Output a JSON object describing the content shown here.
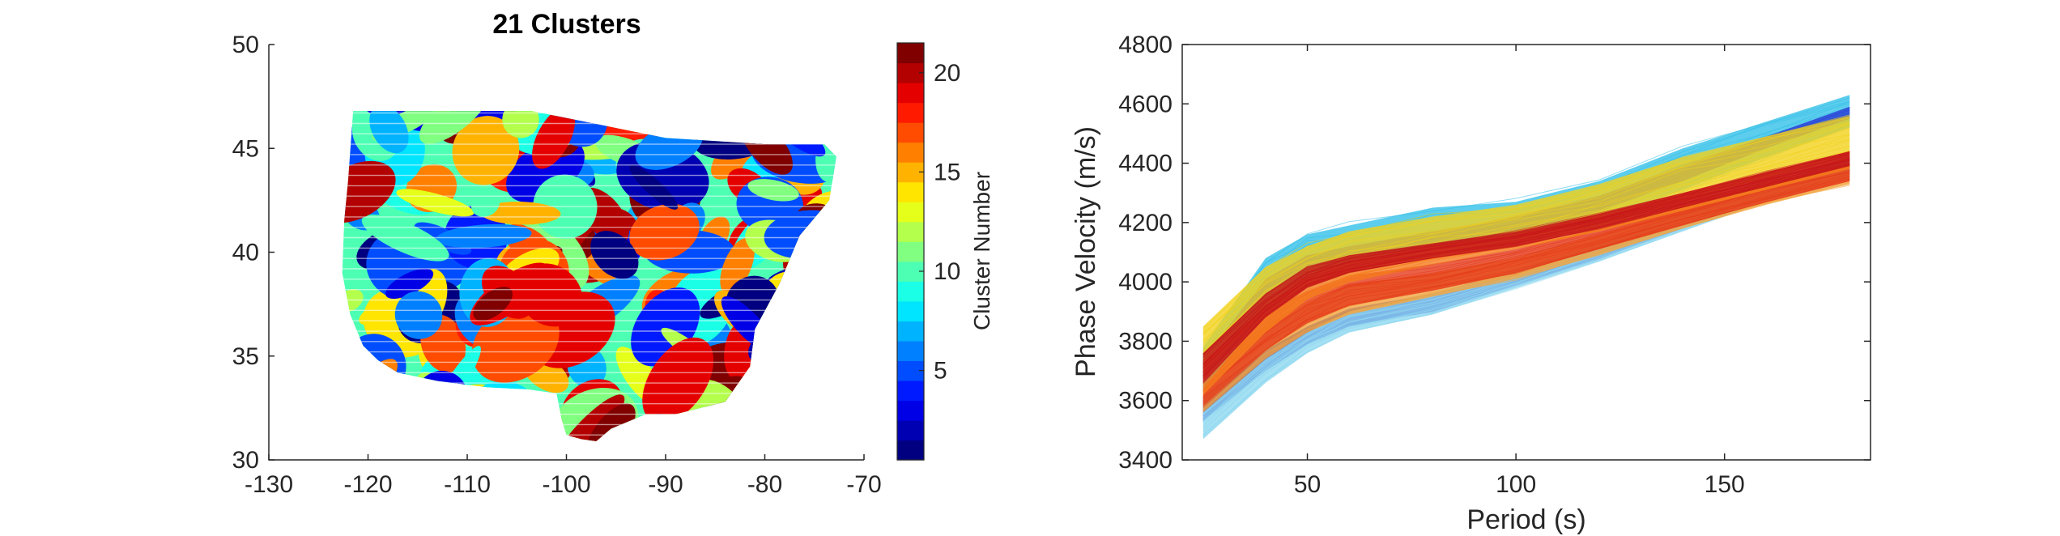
{
  "chart_data": [
    {
      "type": "scatter",
      "title": "21 Clusters",
      "xlabel": "",
      "ylabel": "",
      "xlim": [
        -130,
        -70
      ],
      "ylim": [
        30,
        50
      ],
      "xticks": [
        -130,
        -120,
        -110,
        -100,
        -90,
        -80,
        -70
      ],
      "yticks": [
        30,
        35,
        40,
        45,
        50
      ],
      "xtick_labels": [
        "-130",
        "-120",
        "-110",
        "-100",
        "-90",
        "-80",
        "-70"
      ],
      "ytick_labels": [
        "30",
        "35",
        "40",
        "45",
        "50"
      ],
      "grid": false,
      "colorbar": {
        "label": "Cluster Number",
        "range": [
          1,
          21
        ],
        "ticks": [
          5,
          10,
          15,
          20
        ],
        "tick_labels": [
          "5",
          "10",
          "15",
          "20"
        ],
        "colormap": "jet"
      },
      "domain_outline": [
        [
          -121.5,
          46.8
        ],
        [
          -103.5,
          46.8
        ],
        [
          -90,
          45.5
        ],
        [
          -80,
          45.2
        ],
        [
          -74,
          45.2
        ],
        [
          -72.8,
          44.6
        ],
        [
          -73.5,
          42.5
        ],
        [
          -76.5,
          40.8
        ],
        [
          -78.5,
          38.5
        ],
        [
          -81,
          36.3
        ],
        [
          -81.5,
          34.5
        ],
        [
          -84,
          32.8
        ],
        [
          -89,
          32.2
        ],
        [
          -92,
          32.2
        ],
        [
          -95.5,
          31.5
        ],
        [
          -97,
          30.9
        ],
        [
          -98.5,
          31
        ],
        [
          -100,
          31.2
        ],
        [
          -100.5,
          32
        ],
        [
          -101,
          33.2
        ],
        [
          -104,
          33.4
        ],
        [
          -108,
          33.5
        ],
        [
          -113,
          33.8
        ],
        [
          -117,
          34.2
        ],
        [
          -119,
          34.8
        ],
        [
          -120.5,
          35.5
        ],
        [
          -121.8,
          37
        ],
        [
          -122.6,
          39
        ],
        [
          -122.4,
          41.5
        ],
        [
          -122,
          43.5
        ],
        [
          -121.5,
          46.8
        ]
      ]
    },
    {
      "type": "line",
      "title": "",
      "xlabel": "Period (s)",
      "ylabel": "Phase Velocity (m/s)",
      "xlim": [
        20,
        185
      ],
      "ylim": [
        3400,
        4800
      ],
      "xticks": [
        50,
        100,
        150
      ],
      "yticks": [
        3400,
        3600,
        3800,
        4000,
        4200,
        4400,
        4600,
        4800
      ],
      "xtick_labels": [
        "50",
        "100",
        "150"
      ],
      "ytick_labels": [
        "3400",
        "3600",
        "3800",
        "4000",
        "4200",
        "4400",
        "4600",
        "4800"
      ],
      "grid": false,
      "x": [
        25,
        40,
        50,
        60,
        80,
        100,
        120,
        140,
        160,
        180
      ],
      "curve_bundles": [
        {
          "color": "#1f1fbf",
          "lower": [
            3530,
            3700,
            3790,
            3850,
            3900,
            3990,
            4080,
            4180,
            4280,
            4360
          ],
          "upper": [
            3610,
            3770,
            3850,
            3910,
            3960,
            4040,
            4130,
            4230,
            4330,
            4420
          ]
        },
        {
          "color": "#8fd8f0",
          "lower": [
            3470,
            3660,
            3760,
            3830,
            3890,
            3980,
            4070,
            4170,
            4270,
            4350
          ],
          "upper": [
            3560,
            3740,
            3830,
            3900,
            3960,
            4040,
            4130,
            4230,
            4330,
            4410
          ]
        },
        {
          "color": "#f2a640",
          "lower": [
            3560,
            3740,
            3830,
            3890,
            3950,
            4010,
            4090,
            4180,
            4260,
            4330
          ],
          "upper": [
            3700,
            3850,
            3930,
            3990,
            4030,
            4080,
            4160,
            4250,
            4320,
            4390
          ]
        },
        {
          "color": "#e53a1a",
          "lower": [
            3580,
            3770,
            3860,
            3920,
            3970,
            4030,
            4110,
            4190,
            4270,
            4340
          ],
          "upper": [
            3760,
            3900,
            3970,
            4020,
            4060,
            4110,
            4180,
            4260,
            4330,
            4400
          ]
        },
        {
          "color": "#33c0e8",
          "lower": [
            3640,
            3900,
            4000,
            4040,
            4090,
            4140,
            4210,
            4310,
            4420,
            4520
          ],
          "upper": [
            3780,
            4080,
            4160,
            4190,
            4250,
            4270,
            4340,
            4450,
            4540,
            4630
          ]
        },
        {
          "color": "#2f48d8",
          "lower": [
            3680,
            3950,
            4030,
            4060,
            4120,
            4170,
            4240,
            4340,
            4450,
            4550
          ],
          "upper": [
            3740,
            4010,
            4090,
            4120,
            4170,
            4220,
            4290,
            4390,
            4490,
            4590
          ]
        },
        {
          "color": "#f3d21b",
          "lower": [
            3700,
            3900,
            3980,
            4030,
            4080,
            4130,
            4190,
            4270,
            4350,
            4430
          ],
          "upper": [
            3850,
            4050,
            4120,
            4170,
            4220,
            4260,
            4330,
            4420,
            4490,
            4560
          ]
        },
        {
          "color": "#f57d1d",
          "lower": [
            3620,
            3830,
            3940,
            4000,
            4060,
            4110,
            4170,
            4240,
            4310,
            4380
          ],
          "upper": [
            3730,
            3920,
            4020,
            4070,
            4120,
            4160,
            4230,
            4300,
            4370,
            4440
          ]
        },
        {
          "color": "#c4131a",
          "lower": [
            3660,
            3880,
            3980,
            4030,
            4080,
            4120,
            4180,
            4250,
            4320,
            4390
          ],
          "upper": [
            3760,
            3960,
            4050,
            4090,
            4130,
            4170,
            4230,
            4300,
            4370,
            4440
          ]
        }
      ]
    }
  ]
}
